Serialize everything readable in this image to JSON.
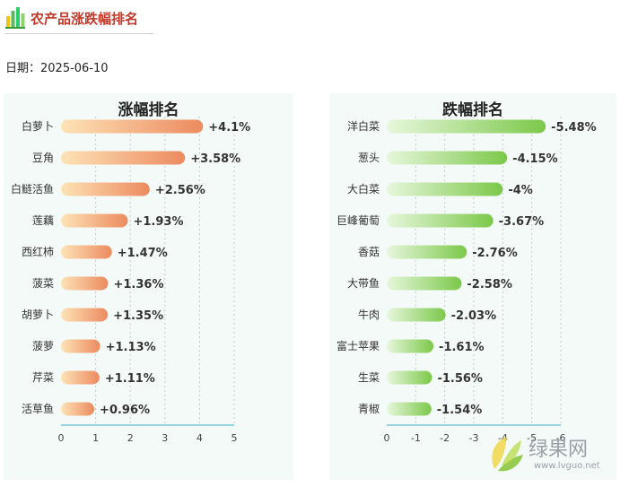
{
  "header": {
    "title": "农产品涨跌幅排名"
  },
  "date": {
    "label": "日期：",
    "value": "2025-06-10"
  },
  "watermark": {
    "name": "绿果网",
    "url": "www.lvguo.net"
  },
  "colors": {
    "rise_start": "#fde3b6",
    "rise_end": "#ec8a5f",
    "fall_start": "#e7f7dc",
    "fall_end": "#7cc84a",
    "axis": "#7ec4d8",
    "grid": "#c9c9c9",
    "title_red": "#c0392b"
  },
  "chart_data": [
    {
      "type": "bar",
      "orientation": "horizontal",
      "title": "涨幅排名",
      "categories": [
        "白萝卜",
        "豆角",
        "白鲢活鱼",
        "莲藕",
        "西红柿",
        "菠菜",
        "胡萝卜",
        "菠萝",
        "芹菜",
        "活草鱼"
      ],
      "values": [
        4.1,
        3.58,
        2.56,
        1.93,
        1.47,
        1.36,
        1.35,
        1.13,
        1.11,
        0.96
      ],
      "labels": [
        "+4.1%",
        "+3.58%",
        "+2.56%",
        "+1.93%",
        "+1.47%",
        "+1.36%",
        "+1.35%",
        "+1.13%",
        "+1.11%",
        "+0.96%"
      ],
      "xticks": [
        "0",
        "1",
        "2",
        "3",
        "4",
        "5"
      ],
      "xlim": [
        0,
        5
      ],
      "grid": true
    },
    {
      "type": "bar",
      "orientation": "horizontal",
      "title": "跌幅排名",
      "categories": [
        "洋白菜",
        "葱头",
        "大白菜",
        "巨峰葡萄",
        "香菇",
        "大带鱼",
        "牛肉",
        "富士苹果",
        "生菜",
        "青椒"
      ],
      "values": [
        -5.48,
        -4.15,
        -4,
        -3.67,
        -2.76,
        -2.58,
        -2.03,
        -1.61,
        -1.56,
        -1.54
      ],
      "labels": [
        "-5.48%",
        "-4.15%",
        "-4%",
        "-3.67%",
        "-2.76%",
        "-2.58%",
        "-2.03%",
        "-1.61%",
        "-1.56%",
        "-1.54%"
      ],
      "xticks": [
        "0",
        "-1",
        "-2",
        "-3",
        "-4",
        "-5",
        "-6"
      ],
      "xlim": [
        0,
        -6
      ],
      "grid": true
    }
  ]
}
